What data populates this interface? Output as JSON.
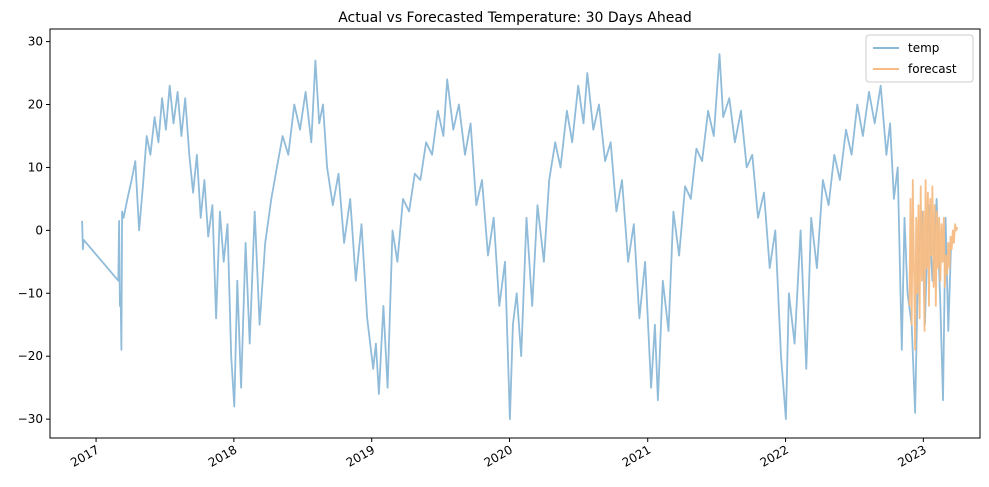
{
  "chart_data": {
    "type": "line",
    "title": "Actual vs Forecasted Temperature: 30 Days Ahead",
    "xlabel": "",
    "ylabel": "",
    "xlim": [
      "2016-09-01",
      "2023-05-31"
    ],
    "ylim": [
      -33,
      32
    ],
    "yticks": [
      30,
      20,
      10,
      0,
      -10,
      -20,
      -30
    ],
    "ytick_labels": [
      "30",
      "20",
      "10",
      "0",
      "−10",
      "−20",
      "−30"
    ],
    "xticks": [
      "2017-01-01",
      "2018-01-01",
      "2019-01-01",
      "2020-01-01",
      "2021-01-01",
      "2022-01-01",
      "2023-01-01"
    ],
    "xtick_labels": [
      "2017",
      "2018",
      "2019",
      "2020",
      "2021",
      "2022",
      "2023"
    ],
    "grid": false,
    "legend_position": "top-right",
    "series": [
      {
        "name": "temp",
        "color": "#8ab8d8",
        "points": [
          [
            "2016-11-25",
            1.5
          ],
          [
            "2016-11-27",
            -3
          ],
          [
            "2016-11-29",
            -1.5
          ],
          [
            "2017-03-01",
            -8
          ],
          [
            "2017-03-03",
            1.5
          ],
          [
            "2017-03-05",
            -12
          ],
          [
            "2017-03-07",
            -10
          ],
          [
            "2017-03-09",
            -19
          ],
          [
            "2017-03-11",
            3
          ],
          [
            "2017-03-15",
            2
          ],
          [
            "2017-03-25",
            5
          ],
          [
            "2017-04-05",
            8
          ],
          [
            "2017-04-15",
            11
          ],
          [
            "2017-04-25",
            0
          ],
          [
            "2017-05-05",
            7
          ],
          [
            "2017-05-15",
            15
          ],
          [
            "2017-05-25",
            12
          ],
          [
            "2017-06-05",
            18
          ],
          [
            "2017-06-15",
            14
          ],
          [
            "2017-06-25",
            21
          ],
          [
            "2017-07-05",
            16
          ],
          [
            "2017-07-15",
            23
          ],
          [
            "2017-07-25",
            17
          ],
          [
            "2017-08-05",
            22
          ],
          [
            "2017-08-15",
            15
          ],
          [
            "2017-08-25",
            21
          ],
          [
            "2017-09-05",
            12
          ],
          [
            "2017-09-15",
            6
          ],
          [
            "2017-09-25",
            12
          ],
          [
            "2017-10-05",
            2
          ],
          [
            "2017-10-15",
            8
          ],
          [
            "2017-10-25",
            -1
          ],
          [
            "2017-11-05",
            4
          ],
          [
            "2017-11-15",
            -14
          ],
          [
            "2017-11-25",
            3
          ],
          [
            "2017-12-05",
            -5
          ],
          [
            "2017-12-15",
            1
          ],
          [
            "2017-12-25",
            -20
          ],
          [
            "2018-01-02",
            -28
          ],
          [
            "2018-01-10",
            -8
          ],
          [
            "2018-01-20",
            -25
          ],
          [
            "2018-02-01",
            -2
          ],
          [
            "2018-02-12",
            -18
          ],
          [
            "2018-02-25",
            3
          ],
          [
            "2018-03-10",
            -15
          ],
          [
            "2018-03-25",
            -2
          ],
          [
            "2018-04-10",
            5
          ],
          [
            "2018-04-25",
            10
          ],
          [
            "2018-05-10",
            15
          ],
          [
            "2018-05-25",
            12
          ],
          [
            "2018-06-10",
            20
          ],
          [
            "2018-06-25",
            16
          ],
          [
            "2018-07-10",
            22
          ],
          [
            "2018-07-25",
            14
          ],
          [
            "2018-08-05",
            27
          ],
          [
            "2018-08-15",
            17
          ],
          [
            "2018-08-25",
            20
          ],
          [
            "2018-09-05",
            10
          ],
          [
            "2018-09-20",
            4
          ],
          [
            "2018-10-05",
            9
          ],
          [
            "2018-10-20",
            -2
          ],
          [
            "2018-11-05",
            5
          ],
          [
            "2018-11-20",
            -8
          ],
          [
            "2018-12-05",
            1
          ],
          [
            "2018-12-20",
            -14
          ],
          [
            "2019-01-05",
            -22
          ],
          [
            "2019-01-12",
            -18
          ],
          [
            "2019-01-20",
            -26
          ],
          [
            "2019-02-01",
            -12
          ],
          [
            "2019-02-12",
            -25
          ],
          [
            "2019-02-25",
            0
          ],
          [
            "2019-03-10",
            -5
          ],
          [
            "2019-03-25",
            5
          ],
          [
            "2019-04-10",
            3
          ],
          [
            "2019-04-25",
            9
          ],
          [
            "2019-05-10",
            8
          ],
          [
            "2019-05-25",
            14
          ],
          [
            "2019-06-10",
            12
          ],
          [
            "2019-06-25",
            19
          ],
          [
            "2019-07-10",
            15
          ],
          [
            "2019-07-20",
            24
          ],
          [
            "2019-08-05",
            16
          ],
          [
            "2019-08-20",
            20
          ],
          [
            "2019-09-05",
            12
          ],
          [
            "2019-09-20",
            17
          ],
          [
            "2019-10-05",
            4
          ],
          [
            "2019-10-20",
            8
          ],
          [
            "2019-11-05",
            -4
          ],
          [
            "2019-11-20",
            2
          ],
          [
            "2019-12-05",
            -12
          ],
          [
            "2019-12-20",
            -5
          ],
          [
            "2020-01-02",
            -30
          ],
          [
            "2020-01-10",
            -15
          ],
          [
            "2020-01-20",
            -10
          ],
          [
            "2020-02-01",
            -20
          ],
          [
            "2020-02-15",
            2
          ],
          [
            "2020-03-01",
            -12
          ],
          [
            "2020-03-15",
            4
          ],
          [
            "2020-04-01",
            -5
          ],
          [
            "2020-04-15",
            8
          ],
          [
            "2020-05-01",
            14
          ],
          [
            "2020-05-15",
            10
          ],
          [
            "2020-06-01",
            19
          ],
          [
            "2020-06-15",
            14
          ],
          [
            "2020-07-01",
            23
          ],
          [
            "2020-07-15",
            17
          ],
          [
            "2020-07-25",
            25
          ],
          [
            "2020-08-10",
            16
          ],
          [
            "2020-08-25",
            20
          ],
          [
            "2020-09-10",
            11
          ],
          [
            "2020-09-25",
            14
          ],
          [
            "2020-10-10",
            3
          ],
          [
            "2020-10-25",
            8
          ],
          [
            "2020-11-10",
            -5
          ],
          [
            "2020-11-25",
            1
          ],
          [
            "2020-12-10",
            -14
          ],
          [
            "2020-12-25",
            -5
          ],
          [
            "2021-01-10",
            -25
          ],
          [
            "2021-01-20",
            -15
          ],
          [
            "2021-01-28",
            -27
          ],
          [
            "2021-02-10",
            -8
          ],
          [
            "2021-02-25",
            -16
          ],
          [
            "2021-03-10",
            3
          ],
          [
            "2021-03-25",
            -4
          ],
          [
            "2021-04-10",
            7
          ],
          [
            "2021-04-25",
            5
          ],
          [
            "2021-05-10",
            13
          ],
          [
            "2021-05-25",
            11
          ],
          [
            "2021-06-10",
            19
          ],
          [
            "2021-06-25",
            15
          ],
          [
            "2021-07-10",
            28
          ],
          [
            "2021-07-20",
            18
          ],
          [
            "2021-08-05",
            21
          ],
          [
            "2021-08-20",
            14
          ],
          [
            "2021-09-05",
            19
          ],
          [
            "2021-09-20",
            10
          ],
          [
            "2021-10-05",
            12
          ],
          [
            "2021-10-20",
            2
          ],
          [
            "2021-11-05",
            6
          ],
          [
            "2021-11-20",
            -6
          ],
          [
            "2021-12-05",
            0
          ],
          [
            "2021-12-20",
            -20
          ],
          [
            "2022-01-02",
            -30
          ],
          [
            "2022-01-10",
            -10
          ],
          [
            "2022-01-25",
            -18
          ],
          [
            "2022-02-10",
            0
          ],
          [
            "2022-02-25",
            -22
          ],
          [
            "2022-03-10",
            2
          ],
          [
            "2022-03-25",
            -6
          ],
          [
            "2022-04-10",
            8
          ],
          [
            "2022-04-25",
            4
          ],
          [
            "2022-05-10",
            12
          ],
          [
            "2022-05-25",
            8
          ],
          [
            "2022-06-10",
            16
          ],
          [
            "2022-06-25",
            12
          ],
          [
            "2022-07-10",
            20
          ],
          [
            "2022-07-25",
            15
          ],
          [
            "2022-08-10",
            22
          ],
          [
            "2022-08-25",
            17
          ],
          [
            "2022-09-10",
            23
          ],
          [
            "2022-09-25",
            12
          ],
          [
            "2022-10-05",
            17
          ],
          [
            "2022-10-15",
            5
          ],
          [
            "2022-10-25",
            10
          ],
          [
            "2022-11-05",
            -19
          ],
          [
            "2022-11-12",
            2
          ],
          [
            "2022-11-20",
            -10
          ],
          [
            "2022-12-01",
            -15
          ],
          [
            "2022-12-10",
            -29
          ],
          [
            "2022-12-18",
            -5
          ],
          [
            "2022-12-28",
            3
          ],
          [
            "2023-01-05",
            -15
          ],
          [
            "2023-01-15",
            4
          ],
          [
            "2023-01-25",
            -8
          ],
          [
            "2023-02-05",
            5
          ],
          [
            "2023-02-15",
            -12
          ],
          [
            "2023-02-22",
            -27
          ],
          [
            "2023-03-01",
            2
          ],
          [
            "2023-03-08",
            -16
          ],
          [
            "2023-03-15",
            -3
          ]
        ]
      },
      {
        "name": "forecast",
        "color": "#f6bc84",
        "points": [
          [
            "2022-11-25",
            -12
          ],
          [
            "2022-11-28",
            5
          ],
          [
            "2022-12-01",
            -15
          ],
          [
            "2022-12-04",
            8
          ],
          [
            "2022-12-07",
            -5
          ],
          [
            "2022-12-10",
            -19
          ],
          [
            "2022-12-13",
            2
          ],
          [
            "2022-12-16",
            -10
          ],
          [
            "2022-12-19",
            4
          ],
          [
            "2022-12-22",
            -14
          ],
          [
            "2022-12-25",
            7
          ],
          [
            "2022-12-28",
            -8
          ],
          [
            "2023-01-01",
            3
          ],
          [
            "2023-01-04",
            -16
          ],
          [
            "2023-01-07",
            8
          ],
          [
            "2023-01-10",
            -6
          ],
          [
            "2023-01-13",
            6
          ],
          [
            "2023-01-16",
            -12
          ],
          [
            "2023-01-19",
            5
          ],
          [
            "2023-01-22",
            -4
          ],
          [
            "2023-01-25",
            7
          ],
          [
            "2023-01-28",
            -9
          ],
          [
            "2023-01-31",
            4
          ],
          [
            "2023-02-03",
            -12
          ],
          [
            "2023-02-06",
            3
          ],
          [
            "2023-02-09",
            -6
          ],
          [
            "2023-02-12",
            2
          ],
          [
            "2023-02-15",
            -8
          ],
          [
            "2023-02-18",
            1
          ],
          [
            "2023-02-21",
            -5
          ],
          [
            "2023-02-24",
            2
          ],
          [
            "2023-02-27",
            -9
          ],
          [
            "2023-03-02",
            -4
          ],
          [
            "2023-03-05",
            -7
          ],
          [
            "2023-03-08",
            -2
          ],
          [
            "2023-03-11",
            -6
          ],
          [
            "2023-03-14",
            -1
          ],
          [
            "2023-03-17",
            -3
          ],
          [
            "2023-03-20",
            0
          ],
          [
            "2023-03-23",
            -2
          ],
          [
            "2023-03-26",
            1
          ],
          [
            "2023-03-29",
            0
          ],
          [
            "2023-04-01",
            0.5
          ]
        ]
      }
    ]
  }
}
